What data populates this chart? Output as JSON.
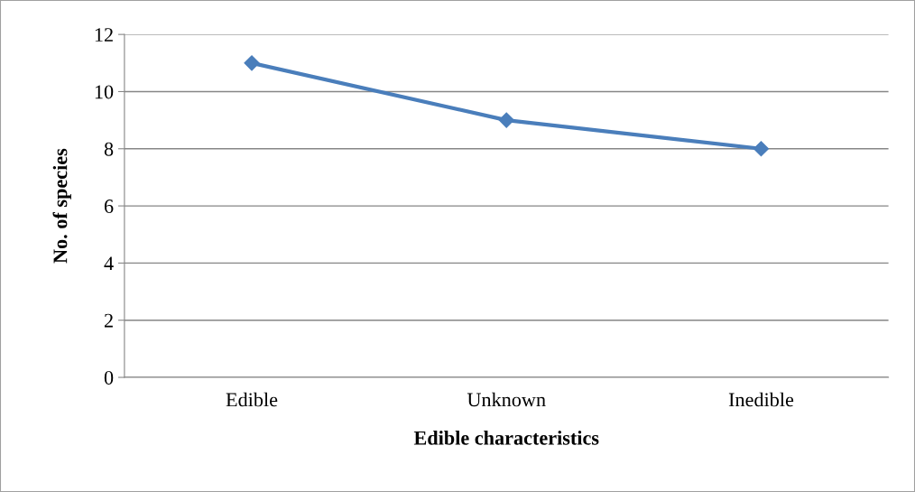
{
  "chart_data": {
    "type": "line",
    "xlabel": "Edible characteristics",
    "ylabel": "No. of species",
    "categories": [
      "Edible",
      "Unknown",
      "Inedible"
    ],
    "series": [
      {
        "color": "#4a7ebb",
        "values": [
          11,
          9,
          8
        ]
      }
    ],
    "ylim": [
      0,
      12
    ],
    "yticks": [
      0,
      2,
      4,
      6,
      8,
      10,
      12
    ],
    "grid": "y",
    "marker": "diamond",
    "line_style": "solid",
    "legend": false
  }
}
